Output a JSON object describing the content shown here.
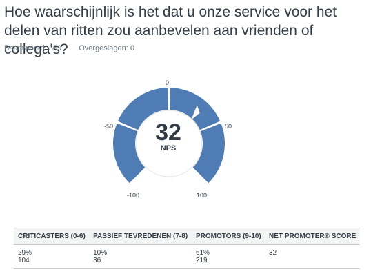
{
  "question": {
    "title": "Hoe waarschijnlijk is het dat u onze service voor het delen van ritten zou aanbevelen aan vrienden of collega's?"
  },
  "stats": {
    "answered": "Beantwoord: 359",
    "skipped": "Overgeslagen: 0"
  },
  "gauge": {
    "score": "32",
    "score_label": "NPS",
    "score_value": 32,
    "range": [
      -100,
      100
    ],
    "ticks": [
      "-100",
      "-50",
      "0",
      "50",
      "100"
    ],
    "fill_color": "#507cb6",
    "track_color": "#ffffff"
  },
  "table": {
    "headers": [
      "CRITICASTERS (0-6)",
      "PASSIEF TEVREDENEN (7-8)",
      "PROMOTORS (9-10)",
      "NET PROMOTER® SCORE"
    ],
    "rows": [
      {
        "pct": "29%",
        "count": "104"
      },
      {
        "pct": "10%",
        "count": "36"
      },
      {
        "pct": "61%",
        "count": "219"
      },
      {
        "pct": "32",
        "count": ""
      }
    ]
  }
}
